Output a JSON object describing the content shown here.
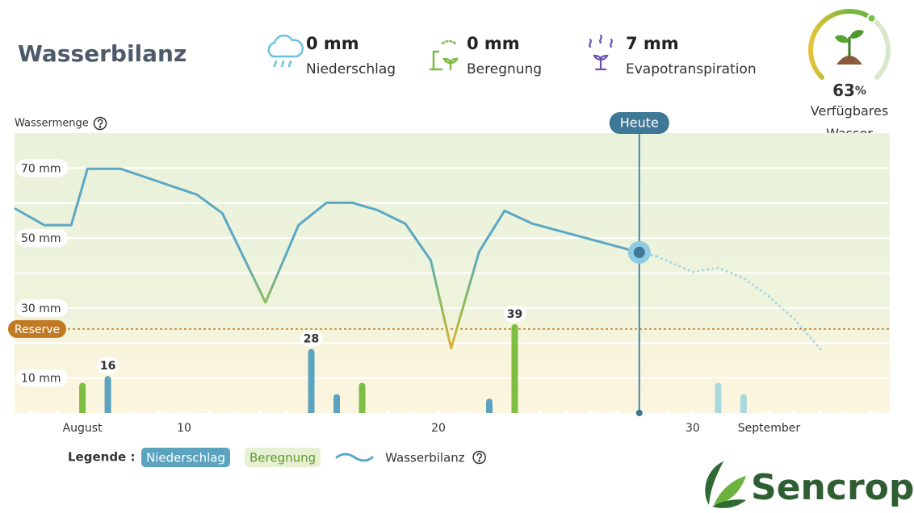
{
  "header": {
    "title": "Wasserbilanz",
    "stats": [
      {
        "value": "0 mm",
        "label": "Niederschlag"
      },
      {
        "value": "0 mm",
        "label": "Beregnung"
      },
      {
        "value": "7 mm",
        "label": "Evapotranspiration"
      }
    ]
  },
  "gauge": {
    "value": 63,
    "unit": "%",
    "label": "Verfügbares Wasser"
  },
  "chart_data": {
    "type": "combo",
    "y_axis_label": "Wassermenge",
    "ylim": [
      0,
      80
    ],
    "yticks": [
      {
        "value": 10,
        "label": "10 mm"
      },
      {
        "value": 20,
        "label": null
      },
      {
        "value": 30,
        "label": "30 mm"
      },
      {
        "value": 40,
        "label": null
      },
      {
        "value": 50,
        "label": "50 mm"
      },
      {
        "value": 60,
        "label": null
      },
      {
        "value": 70,
        "label": "70 mm"
      }
    ],
    "grid": true,
    "xlim": [
      3.33,
      37.75
    ],
    "xticks": [
      {
        "value": 6,
        "label": "August"
      },
      10,
      20,
      30,
      {
        "value": 33,
        "label": "September"
      }
    ],
    "y2lim": [
      0,
      124
    ],
    "series": [
      {
        "name": "Niederschlag",
        "type": "bar",
        "color": "#5ba3bf",
        "axis": "y2",
        "x": [
          7,
          15,
          16,
          22
        ],
        "values": [
          16,
          28,
          8,
          6
        ],
        "show_labels": [
          0,
          1
        ]
      },
      {
        "type": "bar",
        "forecast": true,
        "color": "#a9d8df",
        "axis": "y2",
        "x": [
          31,
          32
        ],
        "values": [
          13,
          8
        ]
      },
      {
        "name": "Beregnung",
        "type": "bar",
        "color": "#7cbd42",
        "axis": "y2",
        "x": [
          6,
          17,
          23
        ],
        "values": [
          13,
          13,
          39
        ],
        "show_labels": [
          2
        ]
      },
      {
        "name": "Wasserbilanz",
        "type": "line",
        "color": "#5ba8c4",
        "forecast_from": 20,
        "x": [
          3.33,
          4.5,
          5.56,
          6.2,
          7.5,
          10.5,
          11.5,
          12.4,
          13.2,
          14.5,
          15.6,
          16.6,
          17.6,
          18.7,
          19.7,
          20.5,
          21.6,
          22.6,
          23.7,
          27.9,
          28.6,
          30,
          31,
          32,
          32.9,
          34,
          35.1
        ],
        "values": [
          58.5,
          53.7,
          53.7,
          69.8,
          69.8,
          62.4,
          57.1,
          43.6,
          31.6,
          53.7,
          60.1,
          60.1,
          58,
          54.1,
          43.6,
          18.5,
          46.1,
          57.8,
          54.1,
          45.9,
          44.7,
          40.3,
          41.5,
          38.5,
          33.9,
          26.8,
          17.6
        ]
      }
    ],
    "reserve": {
      "label": "Reserve",
      "value": 24,
      "color": "#c07a26"
    },
    "today": {
      "label": "Heute",
      "x": 27.9
    },
    "legend": {
      "title": "Legende :"
    }
  },
  "logo": "Sencrop"
}
